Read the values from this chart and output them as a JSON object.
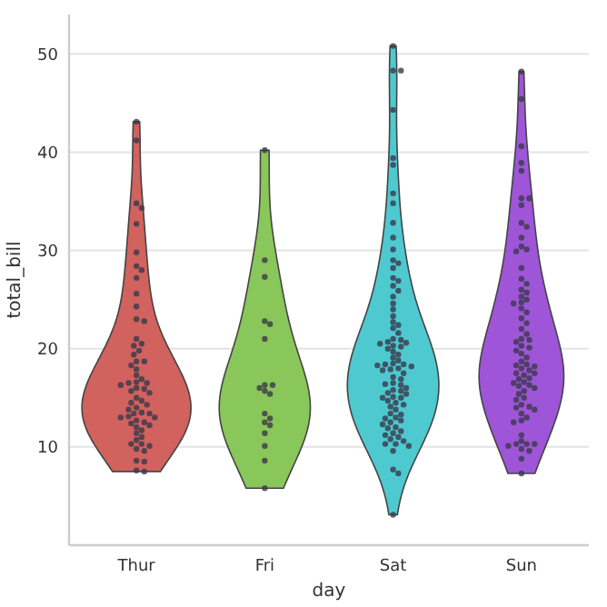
{
  "chart_data": {
    "type": "scatter",
    "xlabel": "day",
    "ylabel": "total_bill",
    "categories": [
      "Thur",
      "Fri",
      "Sat",
      "Sun"
    ],
    "colors": [
      "#d1625e",
      "#8ac75a",
      "#4ec9d0",
      "#9e55d8"
    ],
    "ylim": [
      0,
      54
    ],
    "yticks": [
      10,
      20,
      30,
      40,
      50
    ],
    "grid": "y",
    "marker": "circle",
    "series": [
      {
        "color": "#3a3a4a",
        "x": [
          "Thur",
          "Thur",
          "Thur",
          "Thur",
          "Thur",
          "Thur",
          "Thur",
          "Thur",
          "Thur",
          "Thur",
          "Thur",
          "Thur",
          "Thur",
          "Thur",
          "Thur",
          "Thur",
          "Thur",
          "Thur",
          "Thur",
          "Thur",
          "Thur",
          "Thur",
          "Thur",
          "Thur",
          "Thur",
          "Thur",
          "Thur",
          "Thur",
          "Thur",
          "Thur",
          "Thur",
          "Thur",
          "Thur",
          "Thur",
          "Thur",
          "Thur",
          "Thur",
          "Thur",
          "Thur",
          "Thur",
          "Thur",
          "Thur",
          "Thur",
          "Thur",
          "Thur",
          "Thur",
          "Thur",
          "Thur",
          "Thur",
          "Thur",
          "Thur",
          "Thur",
          "Thur",
          "Thur",
          "Thur",
          "Thur",
          "Thur",
          "Thur",
          "Thur",
          "Thur",
          "Thur",
          "Thur"
        ],
        "values": [
          7.5,
          7.6,
          8.5,
          8.6,
          9.6,
          9.8,
          10.1,
          10.3,
          10.3,
          10.7,
          11.0,
          11.4,
          11.7,
          12.0,
          12.2,
          12.4,
          12.5,
          12.7,
          13.0,
          13.0,
          13.1,
          13.4,
          13.4,
          13.5,
          13.8,
          14.0,
          14.3,
          14.5,
          14.7,
          15.0,
          15.5,
          15.7,
          15.9,
          16.0,
          16.3,
          16.5,
          16.5,
          16.6,
          16.9,
          17.3,
          17.9,
          18.3,
          18.7,
          18.7,
          19.4,
          19.8,
          20.3,
          20.5,
          21.0,
          22.8,
          23.0,
          24.3,
          25.6,
          27.2,
          28.0,
          28.4,
          29.8,
          32.7,
          34.3,
          34.8,
          41.2,
          43.1
        ]
      },
      {
        "color": "#3a3a4a",
        "x": [
          "Fri",
          "Fri",
          "Fri",
          "Fri",
          "Fri",
          "Fri",
          "Fri",
          "Fri",
          "Fri",
          "Fri",
          "Fri",
          "Fri",
          "Fri",
          "Fri",
          "Fri",
          "Fri",
          "Fri",
          "Fri",
          "Fri"
        ],
        "values": [
          5.8,
          8.6,
          10.1,
          11.4,
          12.2,
          12.5,
          12.9,
          13.4,
          15.4,
          15.7,
          16.0,
          16.3,
          16.3,
          21.0,
          22.5,
          22.8,
          27.3,
          29.0,
          40.2
        ]
      },
      {
        "color": "#3a3a4a",
        "x": [
          "Sat",
          "Sat",
          "Sat",
          "Sat",
          "Sat",
          "Sat",
          "Sat",
          "Sat",
          "Sat",
          "Sat",
          "Sat",
          "Sat",
          "Sat",
          "Sat",
          "Sat",
          "Sat",
          "Sat",
          "Sat",
          "Sat",
          "Sat",
          "Sat",
          "Sat",
          "Sat",
          "Sat",
          "Sat",
          "Sat",
          "Sat",
          "Sat",
          "Sat",
          "Sat",
          "Sat",
          "Sat",
          "Sat",
          "Sat",
          "Sat",
          "Sat",
          "Sat",
          "Sat",
          "Sat",
          "Sat",
          "Sat",
          "Sat",
          "Sat",
          "Sat",
          "Sat",
          "Sat",
          "Sat",
          "Sat",
          "Sat",
          "Sat",
          "Sat",
          "Sat",
          "Sat",
          "Sat",
          "Sat",
          "Sat",
          "Sat",
          "Sat",
          "Sat",
          "Sat",
          "Sat",
          "Sat",
          "Sat",
          "Sat",
          "Sat",
          "Sat",
          "Sat",
          "Sat",
          "Sat",
          "Sat",
          "Sat",
          "Sat",
          "Sat",
          "Sat",
          "Sat",
          "Sat",
          "Sat",
          "Sat",
          "Sat",
          "Sat",
          "Sat",
          "Sat",
          "Sat",
          "Sat",
          "Sat",
          "Sat",
          "Sat"
        ],
        "values": [
          3.1,
          7.3,
          7.7,
          9.6,
          10.1,
          10.3,
          10.3,
          10.6,
          10.8,
          11.0,
          11.2,
          11.4,
          11.6,
          11.9,
          12.0,
          12.3,
          12.5,
          12.7,
          12.9,
          13.0,
          13.3,
          13.4,
          13.8,
          14.1,
          14.3,
          14.5,
          14.7,
          15.0,
          15.0,
          15.1,
          15.4,
          15.5,
          15.7,
          15.8,
          16.0,
          16.3,
          16.4,
          16.5,
          16.9,
          17.1,
          17.5,
          17.8,
          17.9,
          18.0,
          18.2,
          18.3,
          18.4,
          18.4,
          18.5,
          18.8,
          19.1,
          19.4,
          19.7,
          20.0,
          20.2,
          20.3,
          20.5,
          20.6,
          20.7,
          20.9,
          21.0,
          21.6,
          22.1,
          22.4,
          22.7,
          23.3,
          24.0,
          24.6,
          25.3,
          25.9,
          26.4,
          26.9,
          27.2,
          28.2,
          28.7,
          29.0,
          30.1,
          31.3,
          32.8,
          34.8,
          35.8,
          38.7,
          39.4,
          44.3,
          48.3,
          48.3,
          50.8
        ]
      },
      {
        "color": "#3a3a4a",
        "x": [
          "Sun",
          "Sun",
          "Sun",
          "Sun",
          "Sun",
          "Sun",
          "Sun",
          "Sun",
          "Sun",
          "Sun",
          "Sun",
          "Sun",
          "Sun",
          "Sun",
          "Sun",
          "Sun",
          "Sun",
          "Sun",
          "Sun",
          "Sun",
          "Sun",
          "Sun",
          "Sun",
          "Sun",
          "Sun",
          "Sun",
          "Sun",
          "Sun",
          "Sun",
          "Sun",
          "Sun",
          "Sun",
          "Sun",
          "Sun",
          "Sun",
          "Sun",
          "Sun",
          "Sun",
          "Sun",
          "Sun",
          "Sun",
          "Sun",
          "Sun",
          "Sun",
          "Sun",
          "Sun",
          "Sun",
          "Sun",
          "Sun",
          "Sun",
          "Sun",
          "Sun",
          "Sun",
          "Sun",
          "Sun",
          "Sun",
          "Sun",
          "Sun",
          "Sun",
          "Sun",
          "Sun",
          "Sun",
          "Sun",
          "Sun",
          "Sun",
          "Sun",
          "Sun",
          "Sun",
          "Sun",
          "Sun",
          "Sun",
          "Sun",
          "Sun",
          "Sun",
          "Sun"
        ],
        "values": [
          7.3,
          8.8,
          9.6,
          9.8,
          10.1,
          10.3,
          10.3,
          10.3,
          10.6,
          11.2,
          12.5,
          12.7,
          13.0,
          13.4,
          13.8,
          14.0,
          14.1,
          14.3,
          14.8,
          15.0,
          15.4,
          15.7,
          16.0,
          16.2,
          16.3,
          16.5,
          16.6,
          16.9,
          17.0,
          17.3,
          17.5,
          17.5,
          17.8,
          18.0,
          18.2,
          18.3,
          18.4,
          18.7,
          19.1,
          19.5,
          19.8,
          20.1,
          20.3,
          20.7,
          20.9,
          21.0,
          21.5,
          22.0,
          22.6,
          23.1,
          23.7,
          24.1,
          24.6,
          24.7,
          25.0,
          25.3,
          25.7,
          26.0,
          26.6,
          27.1,
          28.2,
          29.9,
          30.1,
          30.4,
          31.3,
          32.4,
          32.8,
          34.6,
          35.3,
          35.3,
          38.1,
          38.9,
          40.6,
          45.4,
          48.2
        ]
      }
    ]
  }
}
